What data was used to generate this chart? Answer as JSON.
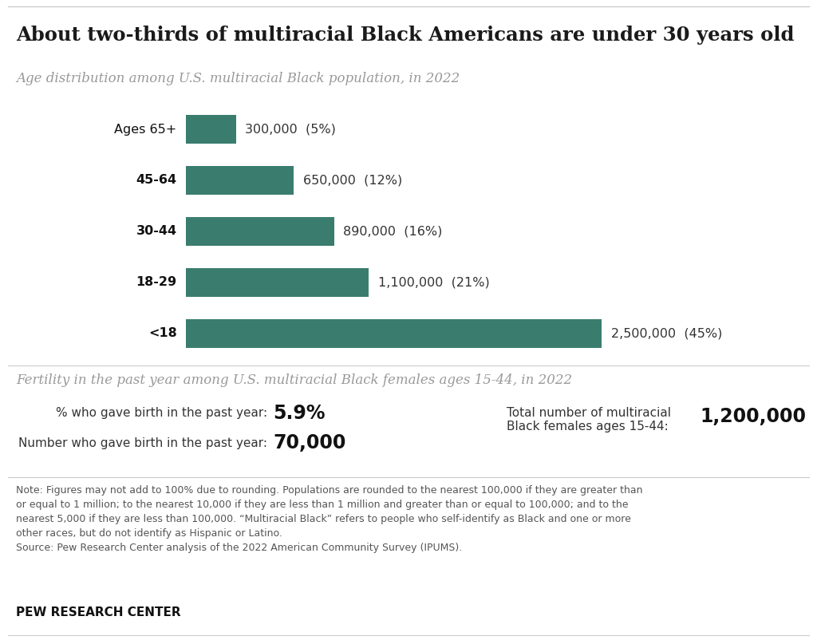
{
  "title": "About two-thirds of multiracial Black Americans are under 30 years old",
  "subtitle1": "Age distribution among U.S. multiracial Black population, in 2022",
  "subtitle2": "Fertility in the past year among U.S. multiracial Black females ages 15-44, in 2022",
  "categories": [
    "Ages 65+",
    "45-64",
    "30-44",
    "18-29",
    "<18"
  ],
  "values": [
    300000,
    650000,
    890000,
    1100000,
    2500000
  ],
  "labels": [
    "300,000  (5%)",
    "650,000  (12%)",
    "890,000  (16%)",
    "1,100,000  (21%)",
    "2,500,000  (45%)"
  ],
  "bar_color": "#3a7d6e",
  "bar_height": 0.55,
  "xlim_max": 3000000,
  "fertility": {
    "pct_label": "% who gave birth in the past year:",
    "pct_value": "5.9%",
    "num_label": "Number who gave birth in the past year:",
    "num_value": "70,000",
    "total_label": "Total number of multiracial\nBlack females ages 15-44:",
    "total_value": "1,200,000"
  },
  "note_line1": "Note: Figures may not add to 100% due to rounding. Populations are rounded to the nearest 100,000 if they are greater than",
  "note_line2": "or equal to 1 million; to the nearest 10,000 if they are less than 1 million and greater than or equal to 100,000; and to the",
  "note_line3": "nearest 5,000 if they are less than 100,000. “Multiracial Black” refers to people who self-identify as Black and one or more",
  "note_line4": "other races, but do not identify as Hispanic or Latino.",
  "source": "Source: Pew Research Center analysis of the 2022 American Community Survey (IPUMS).",
  "branding": "PEW RESEARCH CENTER",
  "bg_color": "#ffffff",
  "title_color": "#1a1a1a",
  "subtitle_color": "#999999",
  "label_color": "#333333",
  "note_color": "#555555",
  "bold_color": "#111111",
  "line_color": "#cccccc"
}
